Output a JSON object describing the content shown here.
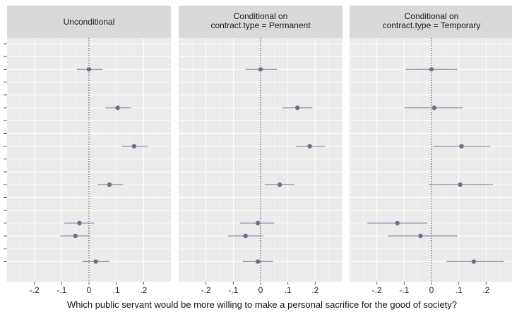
{
  "chart_data": {
    "type": "scatter",
    "xlabel": "Which public servant would be more willing to make a personal sacrifice for the good of society?",
    "xticks": [
      -0.2,
      -0.1,
      0,
      0.1,
      0.2
    ],
    "xtick_labels": [
      "-.2",
      "-.1",
      "0",
      ".1",
      ".2"
    ],
    "xlim": [
      -0.3,
      0.3
    ],
    "grid": true,
    "legend": "none",
    "colors": {
      "panel_bg": "#ebebeb",
      "strip_bg": "#d9d9d9",
      "grid": "#ffffff",
      "point": "#6a7382",
      "errorbar": "#8a96ad"
    },
    "panels": [
      {
        "title": "Unconditional",
        "points": [
          {
            "row": 2,
            "estimate": 0.0,
            "lower": -0.045,
            "upper": 0.05
          },
          {
            "row": 5,
            "estimate": 0.105,
            "lower": 0.06,
            "upper": 0.155
          },
          {
            "row": 8,
            "estimate": 0.165,
            "lower": 0.12,
            "upper": 0.215
          },
          {
            "row": 11,
            "estimate": 0.075,
            "lower": 0.03,
            "upper": 0.125
          },
          {
            "row": 14,
            "estimate": -0.035,
            "lower": -0.09,
            "upper": 0.02
          },
          {
            "row": 15,
            "estimate": -0.05,
            "lower": -0.105,
            "upper": 0.005
          },
          {
            "row": 17,
            "estimate": 0.025,
            "lower": -0.025,
            "upper": 0.075
          }
        ]
      },
      {
        "title": "Conditional on\ncontract.type = Permanent",
        "points": [
          {
            "row": 2,
            "estimate": 0.0,
            "lower": -0.055,
            "upper": 0.06
          },
          {
            "row": 5,
            "estimate": 0.135,
            "lower": 0.08,
            "upper": 0.19
          },
          {
            "row": 8,
            "estimate": 0.18,
            "lower": 0.13,
            "upper": 0.235
          },
          {
            "row": 11,
            "estimate": 0.07,
            "lower": 0.015,
            "upper": 0.125
          },
          {
            "row": 14,
            "estimate": -0.01,
            "lower": -0.075,
            "upper": 0.05
          },
          {
            "row": 15,
            "estimate": -0.055,
            "lower": -0.12,
            "upper": 0.01
          },
          {
            "row": 17,
            "estimate": -0.01,
            "lower": -0.065,
            "upper": 0.045
          }
        ]
      },
      {
        "title": "Conditional on\ncontract.type = Temporary",
        "points": [
          {
            "row": 2,
            "estimate": 0.0,
            "lower": -0.095,
            "upper": 0.095
          },
          {
            "row": 5,
            "estimate": 0.01,
            "lower": -0.1,
            "upper": 0.115
          },
          {
            "row": 8,
            "estimate": 0.11,
            "lower": 0.005,
            "upper": 0.215
          },
          {
            "row": 11,
            "estimate": 0.105,
            "lower": -0.01,
            "upper": 0.225
          },
          {
            "row": 14,
            "estimate": -0.125,
            "lower": -0.235,
            "upper": -0.015
          },
          {
            "row": 15,
            "estimate": -0.04,
            "lower": -0.16,
            "upper": 0.095
          },
          {
            "row": 17,
            "estimate": 0.155,
            "lower": 0.055,
            "upper": 0.265
          }
        ]
      }
    ]
  }
}
